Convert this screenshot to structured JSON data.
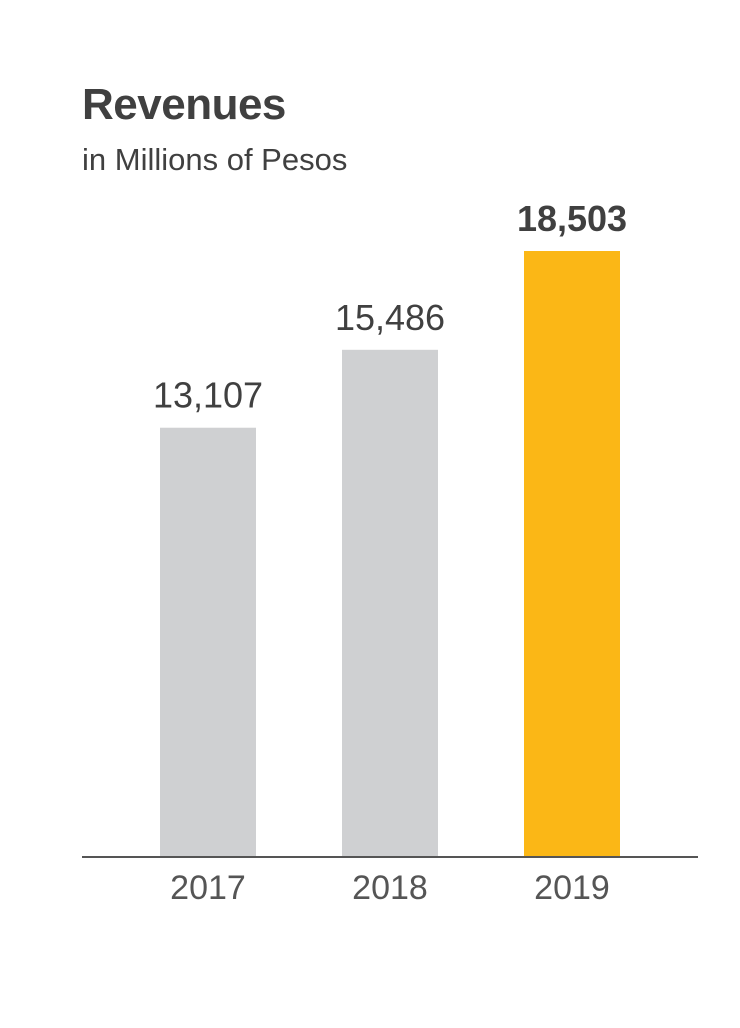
{
  "chart_data": {
    "type": "bar",
    "title": "Revenues",
    "subtitle": "in Millions of Pesos",
    "categories": [
      "2017",
      "2018",
      "2019"
    ],
    "values": [
      13107,
      15486,
      18503
    ],
    "value_labels": [
      "13,107",
      "15,486",
      "18,503"
    ],
    "highlight_index": 2,
    "ylim": [
      0,
      18503
    ],
    "grid": false,
    "axis_labels_shown": false
  },
  "colors": {
    "bar": "#cfd0d2",
    "highlight_bar": "#fbb716",
    "baseline": "#555555",
    "text": "#404040",
    "tick_text": "#555555"
  }
}
